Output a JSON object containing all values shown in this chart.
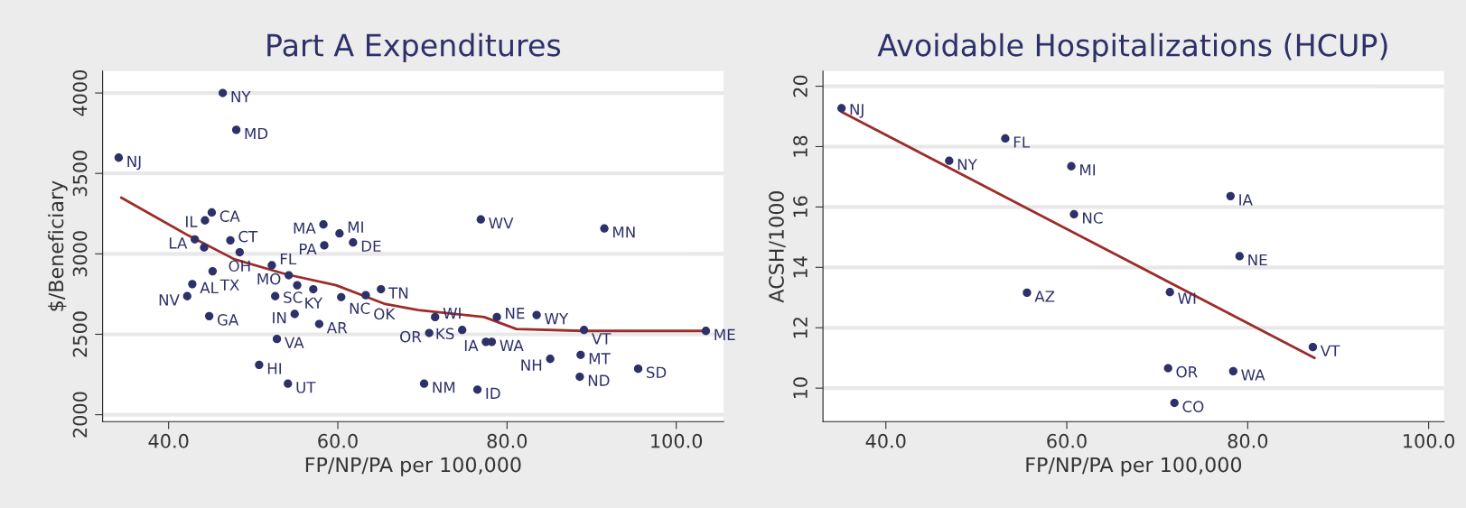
{
  "chart_data": [
    {
      "type": "scatter",
      "title": "Part A Expenditures",
      "xlabel": "FP/NP/PA per 100,000",
      "ylabel": "$/Beneficiary",
      "xlim": [
        32.2,
        105.6
      ],
      "ylim": [
        1957,
        4136
      ],
      "xticks": [
        {
          "value": 40,
          "label": "40.0"
        },
        {
          "value": 60,
          "label": "60.0"
        },
        {
          "value": 80,
          "label": "80.0"
        },
        {
          "value": 100,
          "label": "100.0"
        }
      ],
      "yticks": [
        2000,
        2500,
        3000,
        3500,
        4000
      ],
      "grid": "y",
      "legend": false,
      "series": [
        {
          "marker": "circle",
          "color": "#2e3169",
          "x": [
            46.4,
            48.0,
            34.1,
            45.1,
            44.3,
            43.1,
            47.3,
            44.2,
            48.4,
            52.2,
            54.2,
            45.2,
            42.8,
            42.2,
            44.8,
            52.6,
            54.9,
            57.8,
            52.8,
            50.7,
            54.1,
            58.3,
            58.4,
            60.2,
            61.8,
            55.2,
            57.1,
            60.4,
            65.1,
            63.3,
            76.9,
            91.5,
            71.5,
            70.8,
            74.7,
            77.5,
            78.2,
            78.8,
            83.5,
            89.1,
            103.5,
            85.1,
            88.7,
            88.6,
            95.5,
            70.2,
            76.5
          ],
          "values": [
            4000,
            3771,
            3598,
            3257,
            3208,
            3090,
            3084,
            3040,
            3010,
            2929,
            2867,
            2892,
            2812,
            2737,
            2613,
            2737,
            2626,
            2564,
            2471,
            2310,
            2193,
            3183,
            3053,
            3127,
            3071,
            2805,
            2780,
            2731,
            2780,
            2743,
            3214,
            3158,
            2607,
            2508,
            2527,
            2453,
            2453,
            2607,
            2620,
            2527,
            2521,
            2347,
            2372,
            2236,
            2286,
            2193,
            2156
          ],
          "value_labels": [
            "NY",
            "MD",
            "NJ",
            "CA",
            "IL",
            "LA",
            "CT",
            null,
            "OH",
            "FL",
            "MO",
            "TX",
            "AL",
            "NV",
            "GA",
            "SC",
            "IN",
            "AR",
            "VA",
            "HI",
            "UT",
            "MA",
            "PA",
            "MI",
            "DE",
            null,
            "KY",
            "NC",
            "TN",
            "OK",
            "WV",
            "MN",
            "WI",
            "OR",
            "KS",
            "IA",
            "WA",
            "NE",
            "WY",
            "VT",
            "ME",
            "NH",
            "MT",
            "ND",
            "SD",
            "NM",
            "ID"
          ]
        },
        {
          "type": "line",
          "color": "#9b2d2a",
          "x": [
            34.4,
            42.3,
            47.8,
            53.9,
            59.8,
            65.6,
            69.5,
            77.3,
            81.1,
            89.0,
            103.5
          ],
          "values": [
            3350,
            3115,
            2966,
            2873,
            2805,
            2688,
            2651,
            2607,
            2533,
            2521,
            2521
          ]
        }
      ]
    },
    {
      "type": "scatter",
      "title": "Avoidable Hospitalizations (HCUP)",
      "xlabel": "FP/NP/PA per 100,000",
      "ylabel": "ACSH/1000",
      "xlim": [
        33.05,
        101.7
      ],
      "ylim": [
        8.89,
        20.5
      ],
      "xticks": [
        {
          "value": 40,
          "label": "40.0"
        },
        {
          "value": 60,
          "label": "60.0"
        },
        {
          "value": 80,
          "label": "80.0"
        },
        {
          "value": 100,
          "label": "100.0"
        }
      ],
      "yticks": [
        10,
        12,
        14,
        16,
        18,
        20
      ],
      "grid": "y",
      "legend": false,
      "series": [
        {
          "marker": "circle",
          "color": "#2e3169",
          "x": [
            35.1,
            53.2,
            47.0,
            60.5,
            78.1,
            60.8,
            79.1,
            55.6,
            71.4,
            87.2,
            71.2,
            78.4,
            71.9
          ],
          "values": [
            19.27,
            18.27,
            17.53,
            17.35,
            16.36,
            15.76,
            14.37,
            13.16,
            13.18,
            11.36,
            10.66,
            10.56,
            9.51
          ],
          "value_labels": [
            "NJ",
            "FL",
            "NY",
            "MI",
            "IA",
            "NC",
            "NE",
            "AZ",
            "WI",
            "VT",
            "OR",
            "WA",
            "CO"
          ]
        },
        {
          "type": "line",
          "color": "#9b2d2a",
          "x": [
            35.1,
            87.4
          ],
          "values": [
            19.15,
            11.0
          ]
        }
      ]
    }
  ]
}
